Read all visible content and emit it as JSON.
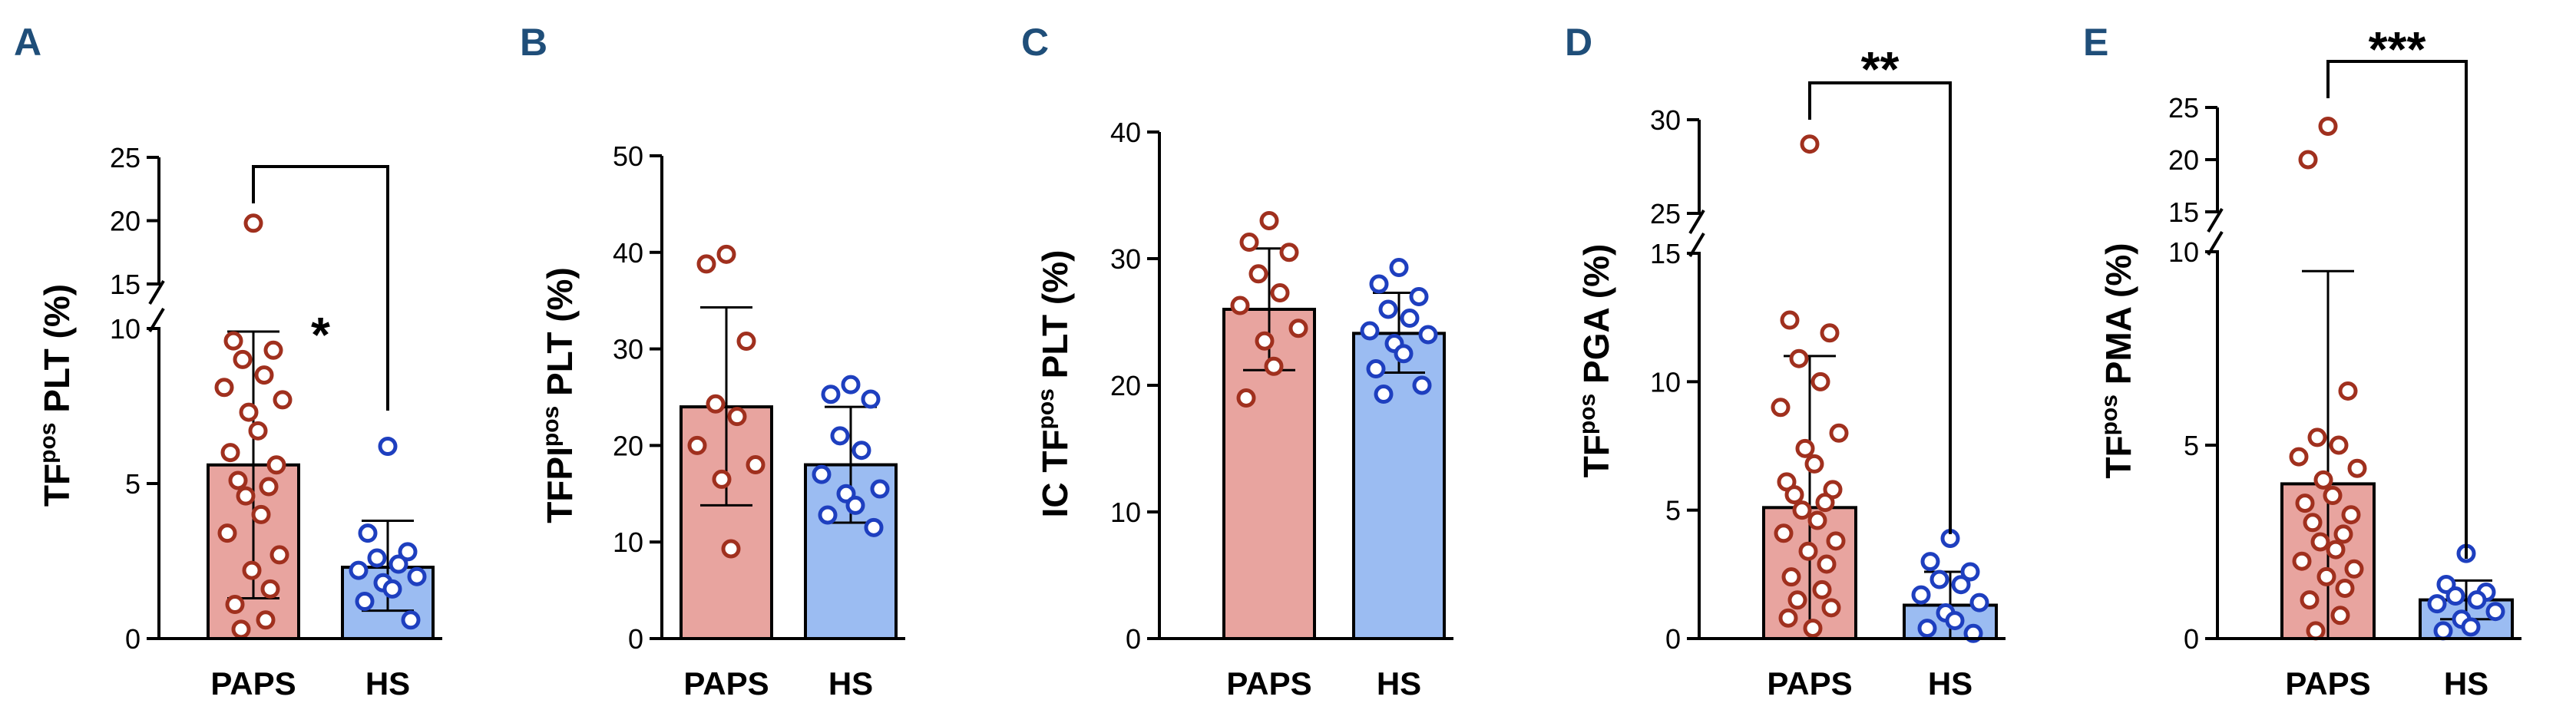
{
  "colors": {
    "paps_fill": "#e8a49f",
    "paps_point": "#a0301e",
    "hs_fill": "#9bbcf2",
    "hs_point": "#1e3fbf",
    "panel_letter": "#1f4e79"
  },
  "chart_data": [
    {
      "panel": "A",
      "type": "bar",
      "ylabel_main": "TF",
      "ylabel_sup": "pos",
      "ylabel_rest": " PLT (%)",
      "categories": [
        "PAPS",
        "HS"
      ],
      "series": [
        {
          "name": "mean",
          "values": [
            5.6,
            2.3
          ]
        }
      ],
      "sd": [
        [
          1.3,
          9.9
        ],
        [
          0.9,
          3.8
        ]
      ],
      "points": [
        [
          19.8,
          9.6,
          9.3,
          9.0,
          8.5,
          8.1,
          7.7,
          7.3,
          6.7,
          6.0,
          5.6,
          5.1,
          4.9,
          4.6,
          4.0,
          3.4,
          2.7,
          2.2,
          1.6,
          1.1,
          0.6,
          0.3
        ],
        [
          6.2,
          3.4,
          2.8,
          2.6,
          2.4,
          2.2,
          2.0,
          1.8,
          1.6,
          1.2,
          0.6
        ]
      ],
      "axis": {
        "broken": true,
        "lower_range": [
          0,
          10
        ],
        "upper_range": [
          15,
          25
        ],
        "ticks": [
          {
            "value": 0,
            "label": "0"
          },
          {
            "value": 5,
            "label": "5"
          },
          {
            "value": 10,
            "label": "10"
          },
          {
            "value": 15,
            "label": "15"
          },
          {
            "value": 20,
            "label": "20"
          },
          {
            "value": 25,
            "label": "25"
          }
        ]
      },
      "significance": "*"
    },
    {
      "panel": "B",
      "type": "bar",
      "ylabel_main": "TFPI",
      "ylabel_sup": "pos",
      "ylabel_rest": " PLT (%)",
      "categories": [
        "PAPS",
        "HS"
      ],
      "series": [
        {
          "name": "mean",
          "values": [
            24.0,
            18.0
          ]
        }
      ],
      "sd": [
        [
          13.8,
          34.3
        ],
        [
          12.0,
          24.0
        ]
      ],
      "points": [
        [
          39.8,
          38.8,
          30.8,
          24.3,
          23.0,
          20.0,
          18.0,
          16.5,
          9.3
        ],
        [
          26.3,
          25.3,
          24.8,
          21.0,
          19.5,
          17.0,
          15.5,
          15.0,
          13.8,
          12.8,
          11.5
        ]
      ],
      "axis": {
        "broken": false,
        "range": [
          0,
          50
        ],
        "ticks": [
          {
            "value": 0,
            "label": "0"
          },
          {
            "value": 10,
            "label": "10"
          },
          {
            "value": 20,
            "label": "20"
          },
          {
            "value": 30,
            "label": "30"
          },
          {
            "value": 40,
            "label": "40"
          },
          {
            "value": 50,
            "label": "50"
          }
        ]
      },
      "significance": ""
    },
    {
      "panel": "C",
      "type": "bar",
      "ylabel_main": "IC TF",
      "ylabel_sup": "pos",
      "ylabel_rest": " PLT (%)",
      "categories": [
        "PAPS",
        "HS"
      ],
      "series": [
        {
          "name": "mean",
          "values": [
            26.0,
            24.1
          ]
        }
      ],
      "sd": [
        [
          21.2,
          30.8
        ],
        [
          21.0,
          27.3
        ]
      ],
      "points": [
        [
          33.0,
          31.3,
          30.5,
          28.8,
          27.3,
          26.3,
          24.5,
          23.5,
          21.5,
          19.0
        ],
        [
          29.3,
          28.0,
          27.0,
          26.0,
          25.3,
          24.3,
          24.0,
          23.3,
          22.5,
          21.3,
          20.0,
          19.3
        ]
      ],
      "axis": {
        "broken": false,
        "range": [
          0,
          40
        ],
        "ticks": [
          {
            "value": 0,
            "label": "0"
          },
          {
            "value": 10,
            "label": "10"
          },
          {
            "value": 20,
            "label": "20"
          },
          {
            "value": 30,
            "label": "30"
          },
          {
            "value": 40,
            "label": "40"
          }
        ]
      },
      "significance": ""
    },
    {
      "panel": "D",
      "type": "bar",
      "ylabel_main": "TF",
      "ylabel_sup": "pos",
      "ylabel_rest": " PGA (%)",
      "categories": [
        "PAPS",
        "HS"
      ],
      "series": [
        {
          "name": "mean",
          "values": [
            5.1,
            1.3
          ]
        }
      ],
      "sd": [
        [
          0.0,
          11.0
        ],
        [
          0.0,
          2.6
        ]
      ],
      "points": [
        [
          28.7,
          12.4,
          11.9,
          10.9,
          10.0,
          9.0,
          8.0,
          7.4,
          6.8,
          6.1,
          5.8,
          5.6,
          5.3,
          5.0,
          4.6,
          4.1,
          3.8,
          3.4,
          2.9,
          2.4,
          1.9,
          1.5,
          1.2,
          0.8,
          0.4
        ],
        [
          3.9,
          3.0,
          2.6,
          2.3,
          2.1,
          1.7,
          1.4,
          1.0,
          0.7,
          0.4,
          0.2
        ]
      ],
      "axis": {
        "broken": true,
        "lower_range": [
          0,
          15
        ],
        "upper_range": [
          25,
          30
        ],
        "ticks": [
          {
            "value": 0,
            "label": "0"
          },
          {
            "value": 5,
            "label": "5"
          },
          {
            "value": 10,
            "label": "10"
          },
          {
            "value": 15,
            "label": "15"
          },
          {
            "value": 25,
            "label": "25"
          },
          {
            "value": 30,
            "label": "30"
          }
        ]
      },
      "significance": "**"
    },
    {
      "panel": "E",
      "type": "bar",
      "ylabel_main": "TF",
      "ylabel_sup": "pos",
      "ylabel_rest": " PMA (%)",
      "categories": [
        "PAPS",
        "HS"
      ],
      "series": [
        {
          "name": "mean",
          "values": [
            4.0,
            1.0
          ]
        }
      ],
      "sd": [
        [
          0.0,
          9.5
        ],
        [
          0.5,
          1.5
        ]
      ],
      "points": [
        [
          23.2,
          20.0,
          6.4,
          5.2,
          5.0,
          4.7,
          4.4,
          4.1,
          3.7,
          3.5,
          3.2,
          3.0,
          2.7,
          2.5,
          2.3,
          2.0,
          1.8,
          1.6,
          1.3,
          1.0,
          0.6,
          0.2
        ],
        [
          2.2,
          1.4,
          1.2,
          1.1,
          1.0,
          0.9,
          0.7,
          0.5,
          0.3,
          0.2
        ]
      ],
      "axis": {
        "broken": true,
        "lower_range": [
          0,
          10
        ],
        "upper_range": [
          15,
          25
        ],
        "ticks": [
          {
            "value": 0,
            "label": "0"
          },
          {
            "value": 5,
            "label": "5"
          },
          {
            "value": 10,
            "label": "10"
          },
          {
            "value": 15,
            "label": "15"
          },
          {
            "value": 20,
            "label": "20"
          },
          {
            "value": 25,
            "label": "25"
          }
        ]
      },
      "significance": "***"
    }
  ]
}
